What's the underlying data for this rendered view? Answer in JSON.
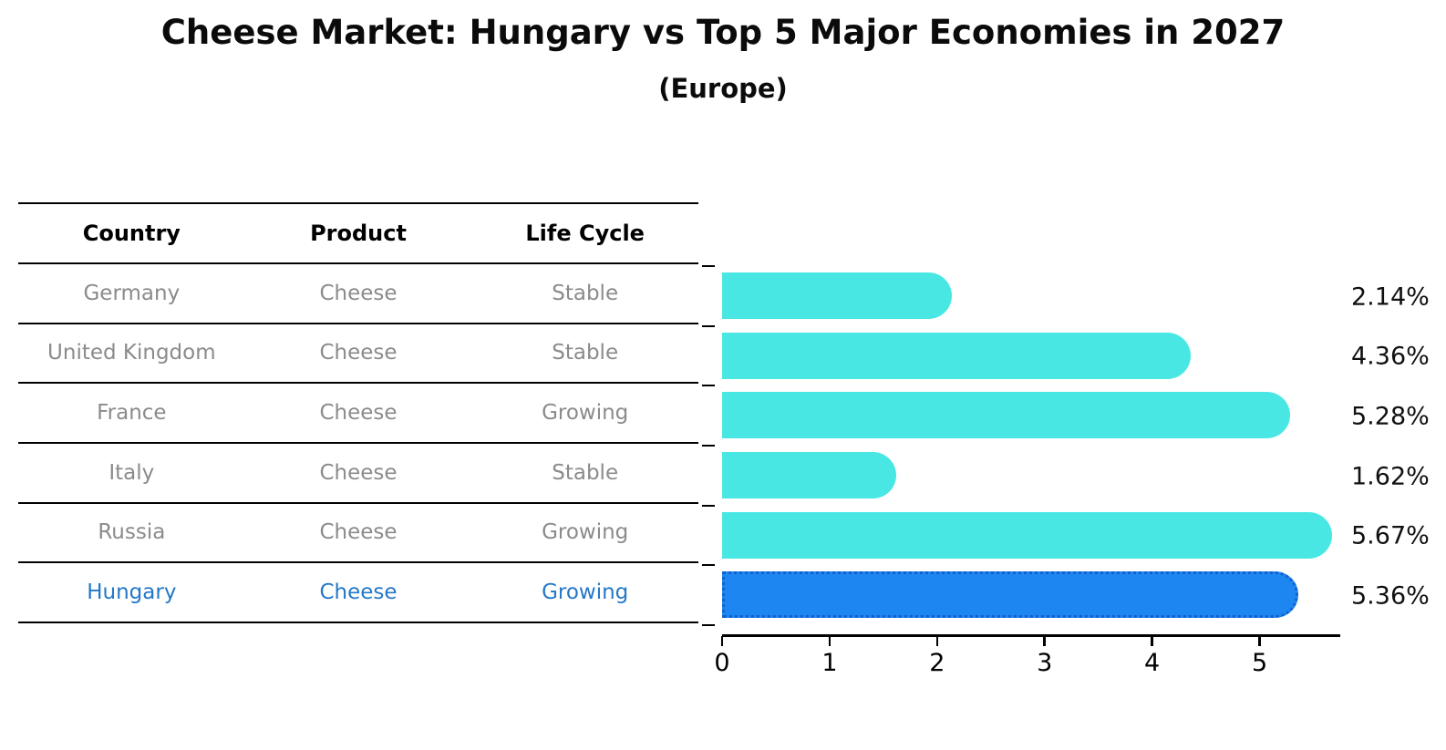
{
  "title": "Cheese Market: Hungary vs Top 5 Major Economies in 2027",
  "subtitle": "(Europe)",
  "table": {
    "headers": [
      "Country",
      "Product",
      "Life Cycle"
    ],
    "rows": [
      {
        "country": "Germany",
        "product": "Cheese",
        "life_cycle": "Stable",
        "highlighted": false
      },
      {
        "country": "United Kingdom",
        "product": "Cheese",
        "life_cycle": "Stable",
        "highlighted": false
      },
      {
        "country": "France",
        "product": "Cheese",
        "life_cycle": "Growing",
        "highlighted": false
      },
      {
        "country": "Italy",
        "product": "Cheese",
        "life_cycle": "Stable",
        "highlighted": false
      },
      {
        "country": "Russia",
        "product": "Cheese",
        "life_cycle": "Growing",
        "highlighted": false
      },
      {
        "country": "Hungary",
        "product": "Cheese",
        "life_cycle": "Growing",
        "highlighted": true
      }
    ]
  },
  "chart_data": {
    "type": "bar",
    "orientation": "horizontal",
    "title": "Cheese Market: Hungary vs Top 5 Major Economies in 2027 (Europe)",
    "categories": [
      "Germany",
      "United Kingdom",
      "France",
      "Italy",
      "Russia",
      "Hungary"
    ],
    "values": [
      2.14,
      4.36,
      5.28,
      1.62,
      5.67,
      5.36
    ],
    "value_labels": [
      "2.14%",
      "4.36%",
      "5.28%",
      "1.62%",
      "5.67%",
      "5.36%"
    ],
    "highlight_index": 5,
    "x_ticks": [
      "0",
      "1",
      "2",
      "3",
      "4",
      "5"
    ],
    "xlim": [
      0,
      5.75
    ],
    "xlabel": "",
    "ylabel": "",
    "grid": false,
    "legend": false
  },
  "colors": {
    "bar": "#49e7e3",
    "highlight_bar": "#1e86f0",
    "highlight_bar_border": "#1260d0",
    "highlight_text": "#2478c8",
    "table_text": "#8b8b8b",
    "header_text": "#000000",
    "axis": "#000000",
    "value_label_text": "#111111"
  }
}
